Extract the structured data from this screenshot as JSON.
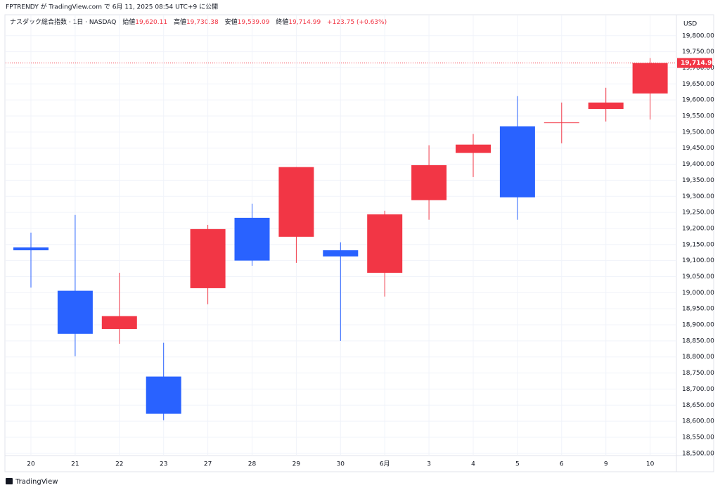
{
  "header": {
    "publisher": "FPTRENDY が TradingView.com で 6月 11, 2025 08:54 UTC+9 に公開"
  },
  "legend": {
    "symbol": "ナスダック総合指数 · 1日 · NASDAQ",
    "open_label": "始値",
    "open": "19,620.11",
    "high_label": "高値",
    "high": "19,730.38",
    "low_label": "安値",
    "low": "19,539.09",
    "close_label": "終値",
    "close": "19,714.99",
    "change": "+123.75 (+0.63%)"
  },
  "footer": {
    "brand": "TradingView"
  },
  "chart_data": {
    "type": "candlestick",
    "currency": "USD",
    "categories": [
      "20",
      "21",
      "22",
      "23",
      "27",
      "28",
      "29",
      "30",
      "6月",
      "3",
      "4",
      "5",
      "6",
      "9",
      "10"
    ],
    "open": [
      19141,
      19006,
      18887,
      18739,
      19014,
      19233,
      19174,
      19132,
      19062,
      19288,
      19435,
      19518,
      19528,
      19572,
      19620.11
    ],
    "high": [
      19187,
      19242,
      19062,
      18844,
      19211,
      19277,
      19391,
      19157,
      19255,
      19459,
      19494,
      19612,
      19592,
      19638,
      19730.38
    ],
    "low": [
      19016,
      18802,
      18841,
      18603,
      18964,
      19084,
      19093,
      18850,
      18988,
      19227,
      19360,
      19227,
      19465,
      19533,
      19539.09
    ],
    "close": [
      19132,
      18872,
      18927,
      18623,
      19198,
      19100,
      19391,
      19113,
      19244,
      19397,
      19461,
      19297,
      19530,
      19592,
      19714.99
    ],
    "up_color": "#f23645",
    "down_color": "#2962ff",
    "last_price": 19714.99,
    "last_price_label": "19,714.99",
    "ylim": [
      18493,
      19863
    ],
    "grid": true,
    "yticks": [
      {
        "value": 18500,
        "label": "18,500.00"
      },
      {
        "value": 18550,
        "label": "18,550.00"
      },
      {
        "value": 18600,
        "label": "18,600.00"
      },
      {
        "value": 18650,
        "label": "18,650.00"
      },
      {
        "value": 18700,
        "label": "18,700.00"
      },
      {
        "value": 18750,
        "label": "18,750.00"
      },
      {
        "value": 18800,
        "label": "18,800.00"
      },
      {
        "value": 18850,
        "label": "18,850.00"
      },
      {
        "value": 18900,
        "label": "18,900.00"
      },
      {
        "value": 18950,
        "label": "18,950.00"
      },
      {
        "value": 19000,
        "label": "19,000.00"
      },
      {
        "value": 19050,
        "label": "19,050.00"
      },
      {
        "value": 19100,
        "label": "19,100.00"
      },
      {
        "value": 19150,
        "label": "19,150.00"
      },
      {
        "value": 19200,
        "label": "19,200.00"
      },
      {
        "value": 19250,
        "label": "19,250.00"
      },
      {
        "value": 19300,
        "label": "19,300.00"
      },
      {
        "value": 19350,
        "label": "19,350.00"
      },
      {
        "value": 19400,
        "label": "19,400.00"
      },
      {
        "value": 19450,
        "label": "19,450.00"
      },
      {
        "value": 19500,
        "label": "19,500.00"
      },
      {
        "value": 19550,
        "label": "19,550.00"
      },
      {
        "value": 19600,
        "label": "19,600.00"
      },
      {
        "value": 19650,
        "label": "19,650.00"
      },
      {
        "value": 19700,
        "label": "19,700.00"
      },
      {
        "value": 19750,
        "label": "19,750.00"
      },
      {
        "value": 19800,
        "label": "19,800.00"
      }
    ]
  }
}
